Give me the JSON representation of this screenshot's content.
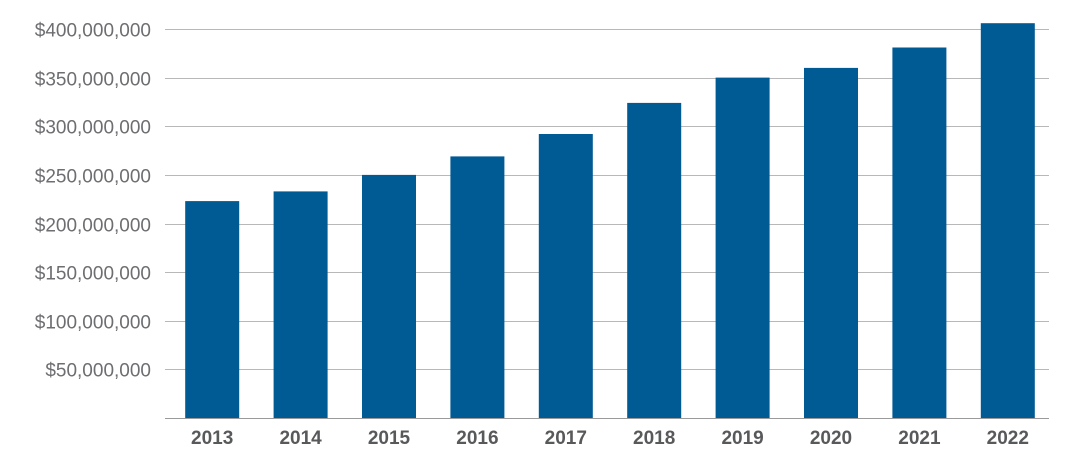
{
  "chart_data": {
    "type": "bar",
    "title": "",
    "xlabel": "",
    "ylabel": "",
    "categories": [
      "2013",
      "2014",
      "2015",
      "2016",
      "2017",
      "2018",
      "2019",
      "2020",
      "2021",
      "2022"
    ],
    "values": [
      223000000,
      233000000,
      250000000,
      269000000,
      292000000,
      324000000,
      350000000,
      360000000,
      381000000,
      406000000
    ],
    "ylim": [
      0,
      400000000
    ],
    "yticks": [
      50000000,
      100000000,
      150000000,
      200000000,
      250000000,
      300000000,
      350000000,
      400000000
    ],
    "ytick_labels": [
      "$50,000,000",
      "$100,000,000",
      "$150,000,000",
      "$200,000,000",
      "$250,000,000",
      "$300,000,000",
      "$350,000,000",
      "$400,000,000"
    ],
    "bar_color": "#005a94",
    "grid": true,
    "legend": "none"
  }
}
